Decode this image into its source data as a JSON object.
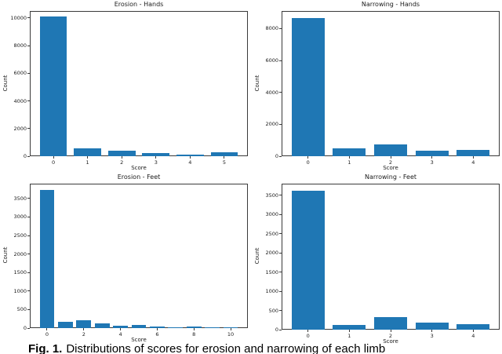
{
  "colors": {
    "bar": "#1f77b4",
    "axis": "#3a3a3a",
    "text": "#1a1a1a",
    "background": "#ffffff"
  },
  "caption": {
    "label": "Fig. 1.",
    "text": "Distributions of scores for erosion and narrowing of each limb"
  },
  "chart_data": [
    {
      "type": "bar",
      "title": "Erosion - Hands",
      "xlabel": "Score",
      "ylabel": "Count",
      "categories": [
        "0",
        "1",
        "2",
        "3",
        "4",
        "5"
      ],
      "values": [
        10100,
        550,
        420,
        200,
        90,
        300
      ],
      "xticklabels": [
        "0",
        "1",
        "2",
        "3",
        "4",
        "5"
      ],
      "yticks": [
        0,
        2000,
        4000,
        6000,
        8000,
        10000
      ],
      "ylim": [
        0,
        10500
      ],
      "grid": false,
      "legend": "none"
    },
    {
      "type": "bar",
      "title": "Narrowing - Hands",
      "xlabel": "Score",
      "ylabel": "Count",
      "categories": [
        "0",
        "1",
        "2",
        "3",
        "4"
      ],
      "values": [
        8650,
        500,
        750,
        350,
        400
      ],
      "xticklabels": [
        "0",
        "1",
        "2",
        "3",
        "4"
      ],
      "yticks": [
        0,
        2000,
        4000,
        6000,
        8000
      ],
      "ylim": [
        0,
        9100
      ],
      "grid": false,
      "legend": "none"
    },
    {
      "type": "bar",
      "title": "Erosion - Feet",
      "xlabel": "Score",
      "ylabel": "Count",
      "categories": [
        "0",
        "1",
        "2",
        "3",
        "4",
        "5",
        "6",
        "7",
        "8",
        "9",
        "10"
      ],
      "values": [
        3730,
        170,
        215,
        120,
        70,
        80,
        35,
        15,
        35,
        15,
        20
      ],
      "xticklabels": [
        "0",
        "2",
        "4",
        "6",
        "8",
        "10"
      ],
      "yticks": [
        0,
        500,
        1000,
        1500,
        2000,
        2500,
        3000,
        3500
      ],
      "ylim": [
        0,
        3900
      ],
      "grid": false,
      "legend": "none"
    },
    {
      "type": "bar",
      "title": "Narrowing - Feet",
      "xlabel": "Score",
      "ylabel": "Count",
      "categories": [
        "0",
        "1",
        "2",
        "3",
        "4"
      ],
      "values": [
        3620,
        120,
        320,
        180,
        150
      ],
      "xticklabels": [
        "0",
        "1",
        "2",
        "3",
        "4"
      ],
      "yticks": [
        0,
        500,
        1000,
        1500,
        2000,
        2500,
        3000,
        3500
      ],
      "ylim": [
        0,
        3800
      ],
      "grid": false,
      "legend": "none"
    }
  ]
}
